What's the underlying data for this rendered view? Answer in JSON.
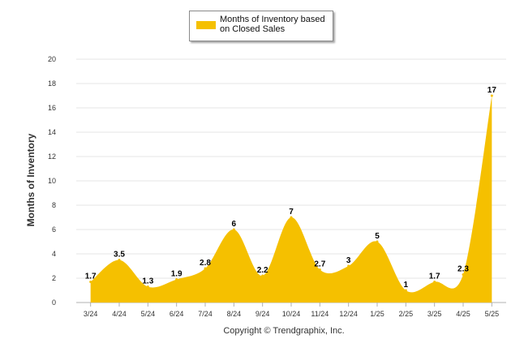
{
  "chart_data": {
    "type": "area",
    "title": "",
    "xlabel": "",
    "ylabel": "Months of Inventory",
    "ylim": [
      0,
      20
    ],
    "yticks": [
      0,
      2,
      4,
      6,
      8,
      10,
      12,
      14,
      16,
      18,
      20
    ],
    "categories": [
      "3/24",
      "4/24",
      "5/24",
      "6/24",
      "7/24",
      "8/24",
      "9/24",
      "10/24",
      "11/24",
      "12/24",
      "1/25",
      "2/25",
      "3/25",
      "4/25",
      "5/25"
    ],
    "series": [
      {
        "name": "Months of Inventory based on Closed Sales",
        "color": "#f5c000",
        "values": [
          1.7,
          3.5,
          1.3,
          1.9,
          2.8,
          6,
          2.2,
          7,
          2.7,
          3,
          5,
          1,
          1.7,
          2.3,
          17
        ],
        "labels": [
          "1.7",
          "3.5",
          "1.3",
          "1.9",
          "2.8",
          "6",
          "2.2",
          "7",
          "2.7",
          "3",
          "5",
          "1",
          "1.7",
          "2.3",
          "17"
        ]
      }
    ],
    "grid": true,
    "legend_position": "top-center"
  },
  "legend": {
    "label": "Months of Inventory based on Closed Sales"
  },
  "footer": {
    "copyright": "Copyright © Trendgraphix, Inc."
  }
}
